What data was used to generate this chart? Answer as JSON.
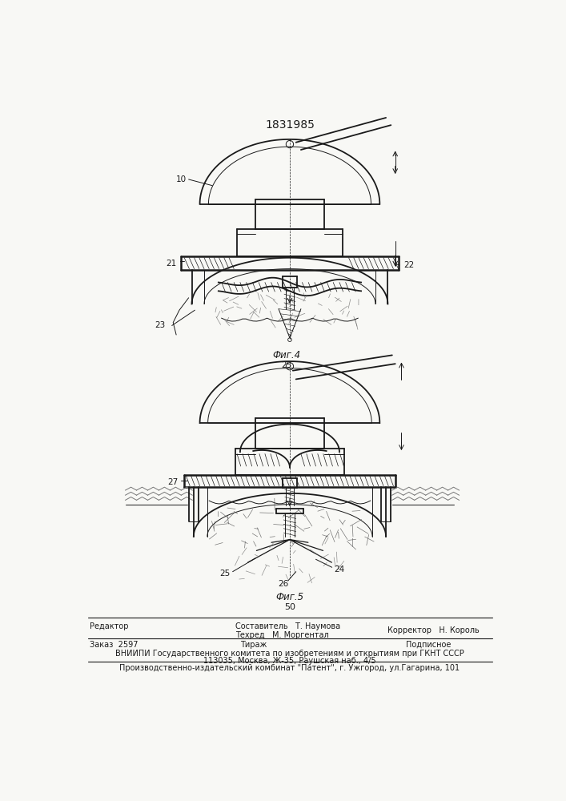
{
  "patent_number": "1831985",
  "bg_color": "#f8f8f5",
  "drawing_color": "#1a1a1a",
  "fig4_label": "Фиг.4",
  "fig5_label": "Фиг.5",
  "fig5_number": "50",
  "footer": {
    "line1_left": "Редактор",
    "line1_center_top": "Составитель   Т. Наумова",
    "line1_center_bot": "Техред   М. Моргентал",
    "line1_right": "Корректор   Н. Король",
    "line2_left": "Заказ  2597",
    "line2_center": "Тираж",
    "line2_right": "Подписное",
    "line3": "ВНИИПИ Государственного комитета по изобретениям и открытиям при ГКНТ СССР",
    "line4": "113035, Москва, Ж-35, Раушская наб., 4/5",
    "line5": "Производственно-издательский комбинат \"Патент\", г. Ужгород, ул.Гагарина, 101"
  }
}
